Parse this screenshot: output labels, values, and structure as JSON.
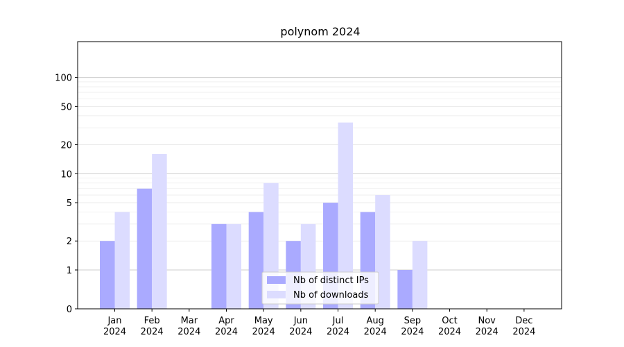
{
  "chart_data": {
    "type": "bar",
    "title": "polynom 2024",
    "xlabel": "",
    "ylabel": "",
    "y_scale": "symlog",
    "y_ticks": [
      0,
      1,
      2,
      5,
      10,
      20,
      50,
      100
    ],
    "categories": [
      [
        "Jan",
        "2024"
      ],
      [
        "Feb",
        "2024"
      ],
      [
        "Mar",
        "2024"
      ],
      [
        "Apr",
        "2024"
      ],
      [
        "May",
        "2024"
      ],
      [
        "Jun",
        "2024"
      ],
      [
        "Jul",
        "2024"
      ],
      [
        "Aug",
        "2024"
      ],
      [
        "Sep",
        "2024"
      ],
      [
        "Oct",
        "2024"
      ],
      [
        "Nov",
        "2024"
      ],
      [
        "Dec",
        "2024"
      ]
    ],
    "series": [
      {
        "name": "Nb of distinct IPs",
        "color": "#aaaaff",
        "values": [
          2,
          7,
          0,
          3,
          4,
          2,
          5,
          4,
          1,
          0,
          0,
          0
        ]
      },
      {
        "name": "Nb of downloads",
        "color": "#dcdcff",
        "values": [
          4,
          16,
          0,
          3,
          8,
          3,
          34,
          6,
          2,
          0,
          0,
          0
        ]
      }
    ],
    "legend_position": "bottom-center",
    "grid": true
  }
}
